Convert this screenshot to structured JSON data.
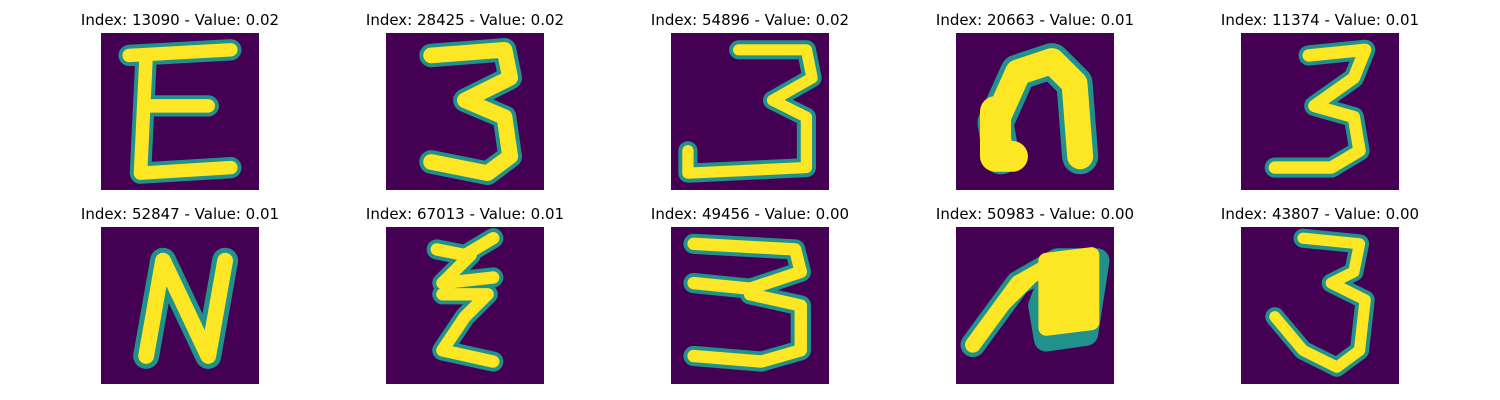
{
  "figure": {
    "colormap": "viridis",
    "background_color": "#440154",
    "stroke_color": "#fde725",
    "edge_color": "#21918c",
    "panels": [
      {
        "title": "Index: 13090 - Value: 0.02",
        "glyph": "E"
      },
      {
        "title": "Index: 28425 - Value: 0.02",
        "glyph": "3"
      },
      {
        "title": "Index: 54896 - Value: 0.02",
        "glyph": "3"
      },
      {
        "title": "Index: 20663 - Value: 0.01",
        "glyph": "n"
      },
      {
        "title": "Index: 11374 - Value: 0.01",
        "glyph": "3"
      },
      {
        "title": "Index: 52847 - Value: 0.01",
        "glyph": "N"
      },
      {
        "title": "Index: 67013 - Value: 0.01",
        "glyph": "z"
      },
      {
        "title": "Index: 49456 - Value: 0.00",
        "glyph": "3"
      },
      {
        "title": "Index: 50983 - Value: 0.00",
        "glyph": "n"
      },
      {
        "title": "Index: 43807 - Value: 0.00",
        "glyph": "3"
      }
    ]
  }
}
